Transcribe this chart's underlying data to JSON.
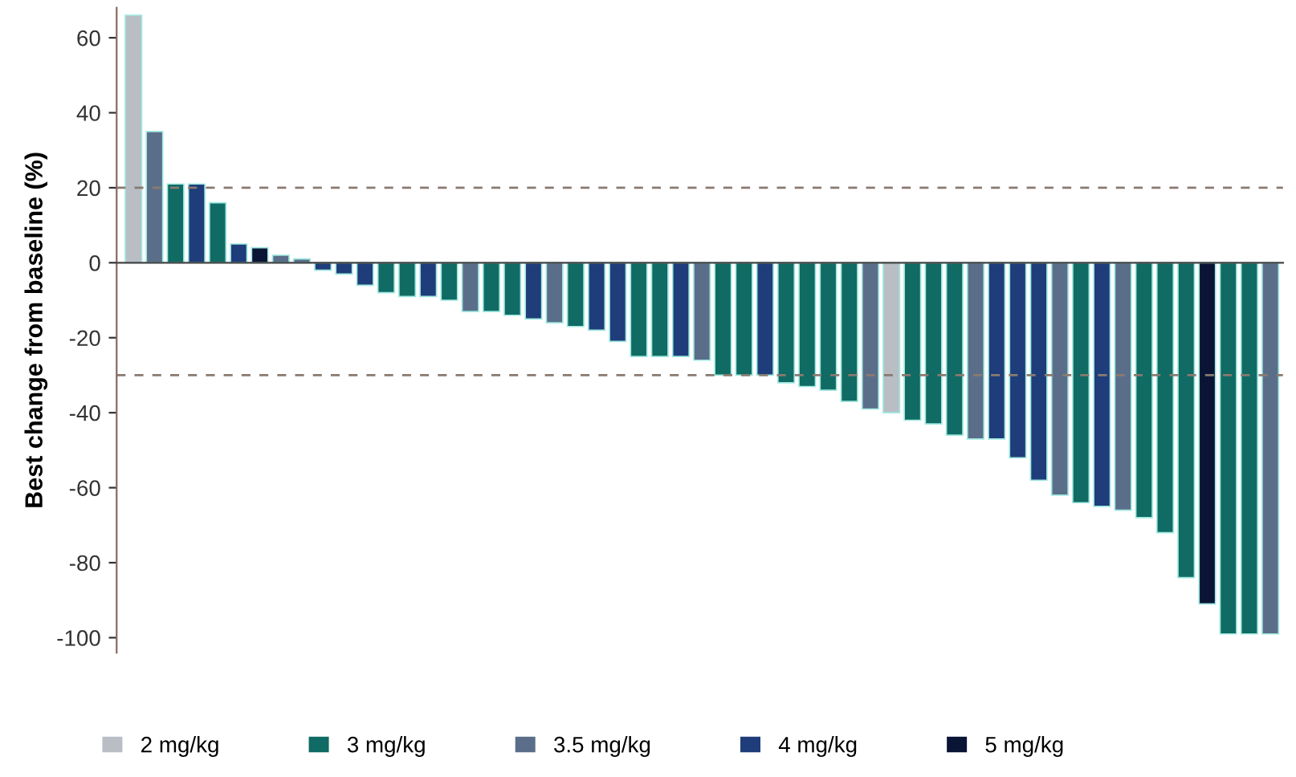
{
  "chart_data": {
    "type": "bar",
    "stacked": true,
    "ylabel": "Best change from baseline (%)",
    "categories": [
      null,
      null,
      null,
      null,
      null,
      null,
      null,
      null,
      null,
      null,
      null,
      null,
      null,
      null,
      null,
      null,
      null,
      null,
      null,
      null,
      null,
      null,
      null,
      null,
      null,
      null,
      null,
      null,
      null,
      null,
      null,
      null,
      null,
      null,
      null,
      null,
      null,
      null,
      null,
      null,
      null,
      null,
      null,
      null,
      null,
      null,
      null,
      null,
      null,
      null,
      null,
      null,
      null,
      null,
      null
    ],
    "series": [
      {
        "name": "2 mg/kg",
        "color": "#b8bec4",
        "values": [
          66,
          null,
          null,
          null,
          null,
          null,
          null,
          null,
          null,
          null,
          null,
          null,
          null,
          null,
          null,
          null,
          null,
          null,
          null,
          null,
          null,
          null,
          null,
          null,
          null,
          null,
          null,
          null,
          null,
          null,
          null,
          null,
          null,
          null,
          null,
          null,
          -40,
          null,
          null,
          null,
          null,
          null,
          null,
          null,
          null,
          null,
          null,
          null,
          null,
          null,
          null,
          null,
          null,
          null,
          null
        ]
      },
      {
        "name": "3 mg/kg",
        "color": "#0f6b63",
        "values": [
          null,
          null,
          21,
          null,
          16,
          null,
          null,
          null,
          null,
          null,
          null,
          null,
          -8,
          -9,
          null,
          -10,
          null,
          -13,
          -14,
          null,
          null,
          -17,
          null,
          null,
          -25,
          -25,
          null,
          null,
          -30,
          -30,
          null,
          -32,
          -33,
          -34,
          -37,
          null,
          null,
          -42,
          -43,
          -46,
          null,
          null,
          null,
          null,
          null,
          -64,
          null,
          null,
          -68,
          -72,
          -84,
          null,
          -99,
          -99,
          null
        ]
      },
      {
        "name": "3.5 mg/kg",
        "color": "#5a6e8a",
        "values": [
          null,
          35,
          null,
          null,
          null,
          null,
          null,
          2,
          1,
          null,
          null,
          null,
          null,
          null,
          null,
          null,
          -13,
          null,
          null,
          null,
          -16,
          null,
          null,
          null,
          null,
          null,
          null,
          -26,
          null,
          null,
          null,
          null,
          null,
          null,
          null,
          -39,
          null,
          null,
          null,
          null,
          -47,
          null,
          null,
          null,
          -62,
          null,
          null,
          -66,
          null,
          null,
          null,
          null,
          null,
          null,
          -99
        ]
      },
      {
        "name": "4 mg/kg",
        "color": "#1e3d7a",
        "values": [
          null,
          null,
          null,
          21,
          null,
          5,
          null,
          null,
          null,
          -2,
          -3,
          -6,
          null,
          null,
          -9,
          null,
          null,
          null,
          null,
          -15,
          null,
          null,
          -18,
          -21,
          null,
          null,
          -25,
          null,
          null,
          null,
          -30,
          null,
          null,
          null,
          null,
          null,
          null,
          null,
          null,
          null,
          null,
          -47,
          -52,
          -58,
          null,
          null,
          -65,
          null,
          null,
          null,
          null,
          null,
          null,
          null,
          null
        ]
      },
      {
        "name": "5 mg/kg",
        "color": "#0a1535",
        "values": [
          null,
          null,
          null,
          null,
          null,
          null,
          4,
          null,
          null,
          null,
          null,
          null,
          null,
          null,
          null,
          null,
          null,
          null,
          null,
          null,
          null,
          null,
          null,
          null,
          null,
          null,
          null,
          null,
          null,
          null,
          null,
          null,
          null,
          null,
          null,
          null,
          null,
          null,
          null,
          null,
          null,
          null,
          null,
          null,
          null,
          null,
          null,
          null,
          null,
          null,
          null,
          -91,
          null,
          null,
          null
        ]
      }
    ],
    "ylim": [
      -104,
      68
    ],
    "yticks": [
      -100,
      -80,
      -60,
      -40,
      -20,
      0,
      20,
      40,
      60
    ],
    "ref_lines": [
      {
        "axis": "y",
        "value": 20,
        "color": "#8a7a70",
        "line_style": "dashed"
      },
      {
        "axis": "y",
        "value": -30,
        "color": "#8a7a70",
        "line_style": "dashed"
      }
    ],
    "legend": "bottom",
    "grid": false
  }
}
